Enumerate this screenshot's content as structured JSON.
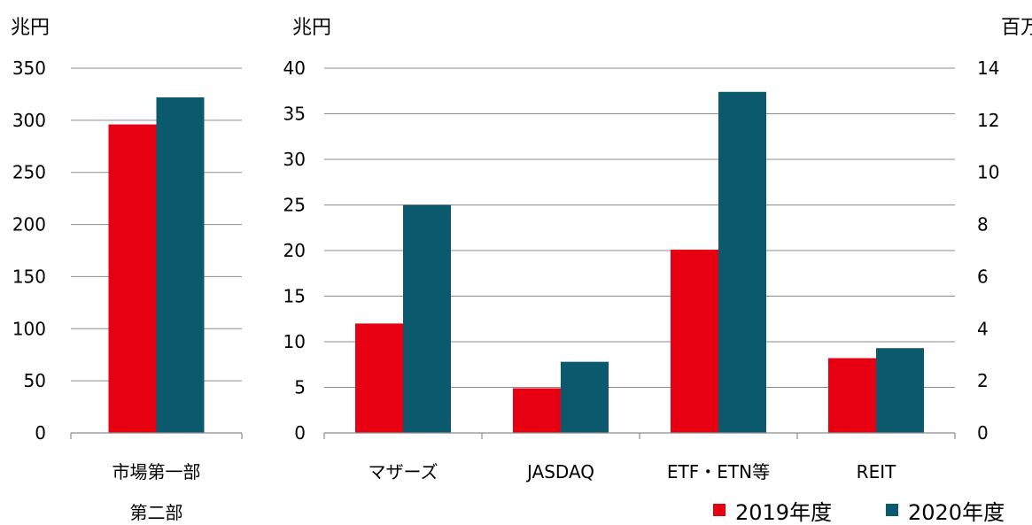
{
  "colors": {
    "series_2019": "#e60012",
    "series_2020": "#0b596c"
  },
  "legend": {
    "label_2019": "2019年度",
    "label_2020": "2020年度"
  },
  "chart_data": [
    {
      "type": "bar",
      "unit": "兆円",
      "ylim": [
        0,
        350
      ],
      "yticks": [
        "0",
        "50",
        "100",
        "150",
        "200",
        "250",
        "300",
        "350"
      ],
      "categories": [
        "市場第一部"
      ],
      "category_lines": [
        [
          "市場第一部",
          "第二部"
        ]
      ],
      "series": [
        {
          "name": "2019年度",
          "values": [
            296
          ]
        },
        {
          "name": "2020年度",
          "values": [
            322
          ]
        }
      ],
      "grid": true
    },
    {
      "type": "bar",
      "unit": "兆円",
      "ylim": [
        0,
        40
      ],
      "yticks": [
        "0",
        "5",
        "10",
        "15",
        "20",
        "25",
        "30",
        "35",
        "40"
      ],
      "categories": [
        "マザーズ",
        "JASDAQ",
        "ETF・ETN等",
        "REIT"
      ],
      "category_lines": [
        [
          "マザーズ"
        ],
        [
          "JASDAQ"
        ],
        [
          "ETF・ETN等"
        ],
        [
          "REIT"
        ]
      ],
      "series": [
        {
          "name": "2019年度",
          "values": [
            12,
            4.9,
            20.1,
            8.2
          ]
        },
        {
          "name": "2020年度",
          "values": [
            25,
            7.8,
            37.4,
            9.3
          ]
        }
      ],
      "grid": true
    },
    {
      "type": "bar",
      "unit": "百万",
      "ylim": [
        0,
        14
      ],
      "yticks": [
        "0",
        "2",
        "4",
        "6",
        "8",
        "10",
        "12",
        "14"
      ],
      "categories": [],
      "series": [],
      "grid": true
    }
  ]
}
